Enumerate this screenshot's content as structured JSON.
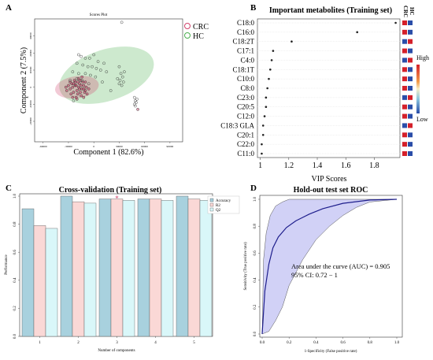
{
  "panels": {
    "A": "A",
    "B": "B",
    "C": "C",
    "D": "D"
  },
  "chart_data": [
    {
      "panel": "A",
      "type": "scatter",
      "title": "Scores Plot",
      "xlabel": "Component 1 (82.6%)",
      "ylabel": "Component 2 (7.5%)",
      "xlim": [
        -70000,
        105000
      ],
      "ylim": [
        -32000,
        40000
      ],
      "xticks": [
        -60000,
        -30000,
        0,
        30000,
        60000,
        90000
      ],
      "yticks": [
        -20000,
        -10000,
        0,
        10000,
        20000,
        30000
      ],
      "xtick_labels": [
        "-60000",
        "-30000",
        "0",
        "30000",
        "60000",
        "90000"
      ],
      "ytick_labels": [
        "-20000",
        "-10000",
        "0",
        "10000",
        "20000",
        "30000"
      ],
      "legend_position": "top-right",
      "series": [
        {
          "name": "CRC",
          "color": "#d0406a",
          "points": [
            [
              -32000,
              -2000
            ],
            [
              -28000,
              -1000
            ],
            [
              -25000,
              0
            ],
            [
              -22000,
              1000
            ],
            [
              -20000,
              -2000
            ],
            [
              -18000,
              0
            ],
            [
              -16000,
              -3000
            ],
            [
              -14000,
              -1000
            ],
            [
              -12000,
              1000
            ],
            [
              -10000,
              -2000
            ],
            [
              -26000,
              2000
            ],
            [
              -24000,
              -3000
            ],
            [
              -22000,
              3000
            ],
            [
              -19000,
              -4000
            ],
            [
              -17000,
              2000
            ],
            [
              -15000,
              -5000
            ],
            [
              -13000,
              3000
            ],
            [
              -11000,
              -3000
            ],
            [
              -9000,
              0
            ],
            [
              -30000,
              1000
            ],
            [
              -27000,
              -4000
            ],
            [
              -21000,
              -6000
            ],
            [
              -23000,
              4000
            ],
            [
              -16000,
              4000
            ],
            [
              -12000,
              -6000
            ],
            [
              -8000,
              -4000
            ],
            [
              -6000,
              -1000
            ],
            [
              -18000,
              5000
            ],
            [
              -14000,
              6000
            ],
            [
              -28000,
              3000
            ],
            [
              -20000,
              -7000
            ],
            [
              -10000,
              3000
            ],
            [
              -25000,
              -6000
            ],
            [
              -33000,
              0
            ],
            [
              -17000,
              -1000
            ],
            [
              -21000,
              1000
            ],
            [
              -24000,
              2000
            ],
            [
              -15000,
              1000
            ],
            [
              -12000,
              -1000
            ],
            [
              -19000,
              3000
            ],
            [
              52000,
              -13000
            ]
          ]
        },
        {
          "name": "HC",
          "color": "#4caf50",
          "points": [
            [
              33000,
              38000
            ],
            [
              -18000,
              19000
            ],
            [
              -15000,
              18000
            ],
            [
              -10000,
              17000
            ],
            [
              -5000,
              17000
            ],
            [
              0,
              19000
            ],
            [
              5000,
              15000
            ],
            [
              -20000,
              14000
            ],
            [
              -13000,
              13000
            ],
            [
              -7000,
              12000
            ],
            [
              -2000,
              12000
            ],
            [
              3000,
              11000
            ],
            [
              8000,
              10000
            ],
            [
              -25000,
              9000
            ],
            [
              -18000,
              8000
            ],
            [
              -10000,
              8000
            ],
            [
              -4000,
              7000
            ],
            [
              2000,
              6000
            ],
            [
              -14000,
              4000
            ],
            [
              -20000,
              5000
            ],
            [
              30000,
              12000
            ],
            [
              32000,
              8000
            ],
            [
              34000,
              6000
            ],
            [
              31000,
              4000
            ],
            [
              35000,
              3000
            ],
            [
              33000,
              1000
            ],
            [
              30000,
              2000
            ],
            [
              28000,
              5000
            ],
            [
              36000,
              9000
            ],
            [
              48000,
              -6000
            ],
            [
              49000,
              -8000
            ],
            [
              50000,
              -9000
            ],
            [
              48000,
              -10000
            ],
            [
              51000,
              -7000
            ],
            [
              49000,
              -11000
            ],
            [
              -28000,
              4000
            ],
            [
              10000,
              3000
            ],
            [
              -6000,
              2000
            ],
            [
              12000,
              14000
            ],
            [
              15000,
              9000
            ],
            [
              -24000,
              -8000
            ],
            [
              20000,
              -2000
            ]
          ]
        }
      ]
    },
    {
      "panel": "B",
      "type": "scatter",
      "title": "Important metabolites (Training set)",
      "xlabel": "VIP Scores",
      "ylabel": "",
      "xlim": [
        0.98,
        1.98
      ],
      "xticks": [
        1.0,
        1.2,
        1.4,
        1.6,
        1.8
      ],
      "xtick_labels": [
        "1",
        "1.2",
        "1.4",
        "1.6",
        "1.8"
      ],
      "categories": [
        "C18:0",
        "C16:0",
        "C18:2T",
        "C17:1",
        "C4:0",
        "C18:1T",
        "C10:0",
        "C8:0",
        "C23:0",
        "C20:5",
        "C12:0",
        "C18:3 GLA",
        "C20:1",
        "C22:0",
        "C11:0"
      ],
      "values": [
        1.95,
        1.68,
        1.22,
        1.09,
        1.08,
        1.07,
        1.06,
        1.05,
        1.04,
        1.04,
        1.03,
        1.02,
        1.02,
        1.01,
        1.01
      ],
      "heatmap_columns": [
        "CRC",
        "HC"
      ],
      "heatmap_values": [
        [
          1,
          0
        ],
        [
          1,
          0
        ],
        [
          0,
          1
        ],
        [
          1,
          0
        ],
        [
          0,
          1
        ],
        [
          1,
          0
        ],
        [
          1,
          0
        ],
        [
          1,
          0
        ],
        [
          0,
          1
        ],
        [
          1,
          0
        ],
        [
          1,
          0
        ],
        [
          0,
          1
        ],
        [
          1,
          0
        ],
        [
          1,
          0
        ],
        [
          1,
          0
        ]
      ],
      "colorbar_labels": [
        "High",
        "Low"
      ]
    },
    {
      "panel": "C",
      "type": "bar",
      "title": "Cross-validation (Training set)",
      "xlabel": "Number of components",
      "ylabel": "Performance",
      "ylim": [
        0,
        1.0
      ],
      "yticks": [
        0.0,
        0.2,
        0.4,
        0.6,
        0.8,
        1.0
      ],
      "ytick_labels": [
        "0.0",
        "0.2",
        "0.4",
        "0.6",
        "0.8",
        "1.0"
      ],
      "categories": [
        "1",
        "2",
        "3",
        "4",
        "5"
      ],
      "legend_position": "top-right",
      "highlight_marker": "*",
      "highlight_index": 2,
      "series": [
        {
          "name": "Accuracy",
          "color": "#a8d1de",
          "values": [
            0.91,
            1.0,
            0.98,
            0.98,
            1.0
          ]
        },
        {
          "name": "R2",
          "color": "#fad8d6",
          "values": [
            0.79,
            0.96,
            0.98,
            0.98,
            0.98
          ]
        },
        {
          "name": "Q2",
          "color": "#d9f7f9",
          "values": [
            0.77,
            0.95,
            0.97,
            0.97,
            0.97
          ]
        }
      ]
    },
    {
      "panel": "D",
      "type": "line",
      "title": "Hold-out test set ROC",
      "xlabel": "1-Specificity (False positive rate)",
      "ylabel": "Sensitivity (True positive rate)",
      "xlim": [
        0,
        1
      ],
      "ylim": [
        0,
        1
      ],
      "xticks": [
        0.0,
        0.2,
        0.4,
        0.6,
        0.8,
        1.0
      ],
      "yticks": [
        0.0,
        0.2,
        0.4,
        0.6,
        0.8,
        1.0
      ],
      "xtick_labels": [
        "0.0",
        "0.2",
        "0.4",
        "0.6",
        "0.8",
        "1.0"
      ],
      "ytick_labels": [
        "0.0",
        "0.2",
        "0.4",
        "0.6",
        "0.8",
        "1.0"
      ],
      "annotation": "Area under the curve (AUC) = 0.905",
      "annotation_ci": "95% CI: 0.72 − 1",
      "line_color": "#1e1e8c",
      "band_color": "#c9c9f5",
      "series": [
        {
          "x": [
            0,
            0.02,
            0.05,
            0.08,
            0.12,
            0.18,
            0.25,
            0.35,
            0.45,
            0.6,
            0.8,
            1.0
          ],
          "y": [
            0,
            0.32,
            0.52,
            0.64,
            0.72,
            0.79,
            0.84,
            0.89,
            0.93,
            0.97,
            0.995,
            1.0
          ]
        }
      ],
      "band_upper": {
        "x": [
          0,
          0.01,
          0.03,
          0.06,
          0.1,
          0.15,
          0.2,
          1.0
        ],
        "y": [
          0,
          0.55,
          0.75,
          0.88,
          0.95,
          0.98,
          1.0,
          1.0
        ]
      },
      "band_lower": {
        "x": [
          0,
          0.05,
          0.1,
          0.15,
          0.2,
          0.3,
          0.4,
          0.5,
          0.6,
          0.7,
          0.8,
          1.0
        ],
        "y": [
          0,
          0.02,
          0.1,
          0.2,
          0.36,
          0.55,
          0.7,
          0.8,
          0.88,
          0.94,
          0.98,
          1.0
        ]
      }
    }
  ]
}
